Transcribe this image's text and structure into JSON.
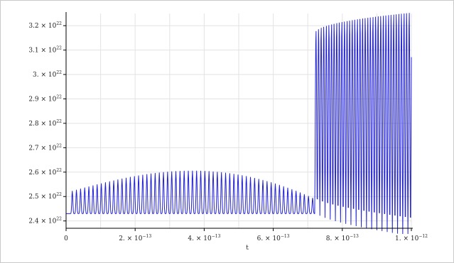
{
  "chart_data": {
    "type": "line",
    "title": "",
    "xlabel": "t",
    "ylabel": "",
    "xlim": [
      0,
      1e-12
    ],
    "ylim": [
      2.37e+22,
      3.25e+22
    ],
    "grid": true,
    "legend": "none",
    "colors": {
      "series": "#2323d4",
      "grid": "#e3e3e3",
      "axis": "#000000"
    },
    "x_ticks": [
      {
        "value": 0,
        "label": "0"
      },
      {
        "value": 2e-13,
        "label": "2. × 10",
        "exp": "−13"
      },
      {
        "value": 4e-13,
        "label": "4. × 10",
        "exp": "−13"
      },
      {
        "value": 6e-13,
        "label": "6. × 10",
        "exp": "−13"
      },
      {
        "value": 8e-13,
        "label": "8. × 10",
        "exp": "−13"
      },
      {
        "value": 1e-12,
        "label": "1. × 10",
        "exp": "−12"
      }
    ],
    "y_ticks": [
      {
        "value": 2.4e+22,
        "label": "2.4 × 10",
        "exp": "22"
      },
      {
        "value": 2.5e+22,
        "label": "2.5 × 10",
        "exp": "22"
      },
      {
        "value": 2.6e+22,
        "label": "2.6 × 10",
        "exp": "22"
      },
      {
        "value": 2.7e+22,
        "label": "2.7 × 10",
        "exp": "22"
      },
      {
        "value": 2.8e+22,
        "label": "2.8 × 10",
        "exp": "22"
      },
      {
        "value": 2.9e+22,
        "label": "2.9 × 10",
        "exp": "22"
      },
      {
        "value": 3e+22,
        "label": "3. × 10",
        "exp": "22"
      },
      {
        "value": 3.1e+22,
        "label": "3.1 × 10",
        "exp": "22"
      },
      {
        "value": 3.2e+22,
        "label": "3.2 × 10",
        "exp": "22"
      }
    ],
    "series": [
      {
        "baseline": 2.43e+22,
        "phase1": {
          "x_start": 1.2e-14,
          "x_end": 7.2e-13,
          "period": 1.2e-14,
          "trough": 2.43e+22,
          "peak_start": 2.52e+22,
          "peak_middle": 2.605e+22,
          "peak_end": 2.49e+22
        },
        "phase2": {
          "x_start": 7.2e-13,
          "x_end": 1e-12,
          "period": 7.5e-15,
          "peak_start": 3.17e+22,
          "peak_end": 3.26e+22,
          "trough_start": 2.44e+22,
          "trough_end": 2.34e+22
        }
      }
    ]
  }
}
